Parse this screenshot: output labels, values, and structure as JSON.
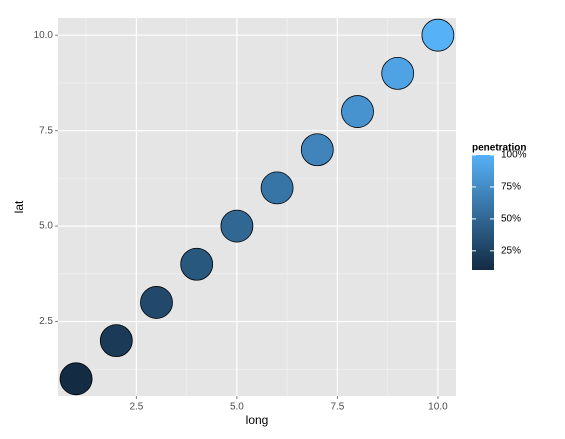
{
  "chart_data": {
    "type": "scatter",
    "x": [
      1,
      2,
      3,
      4,
      5,
      6,
      7,
      8,
      9,
      10
    ],
    "y": [
      1,
      2,
      3,
      4,
      5,
      6,
      7,
      8,
      9,
      10
    ],
    "penetration": [
      10,
      20,
      30,
      40,
      50,
      60,
      70,
      80,
      90,
      100
    ],
    "x_label": "long",
    "y_label": "lat",
    "xlim": [
      0.55,
      10.45
    ],
    "ylim": [
      0.55,
      10.45
    ],
    "xticks": [
      {
        "value": 2.5,
        "label": "2.5"
      },
      {
        "value": 5,
        "label": "5.0"
      },
      {
        "value": 7.5,
        "label": "7.5"
      },
      {
        "value": 10,
        "label": "10.0"
      }
    ],
    "yticks": [
      {
        "value": 2.5,
        "label": "2.5"
      },
      {
        "value": 5,
        "label": "5.0"
      },
      {
        "value": 7.5,
        "label": "7.5"
      },
      {
        "value": 10,
        "label": "10.0"
      }
    ],
    "grid": true,
    "legend": {
      "title": "penetration",
      "low_color": "#132B43",
      "high_color": "#56B1F7",
      "lim": [
        10,
        100
      ],
      "ticks": [
        {
          "value": 25,
          "label": "25%"
        },
        {
          "value": 50,
          "label": "50%"
        },
        {
          "value": 75,
          "label": "75%"
        },
        {
          "value": 100,
          "label": "100%"
        }
      ]
    }
  }
}
